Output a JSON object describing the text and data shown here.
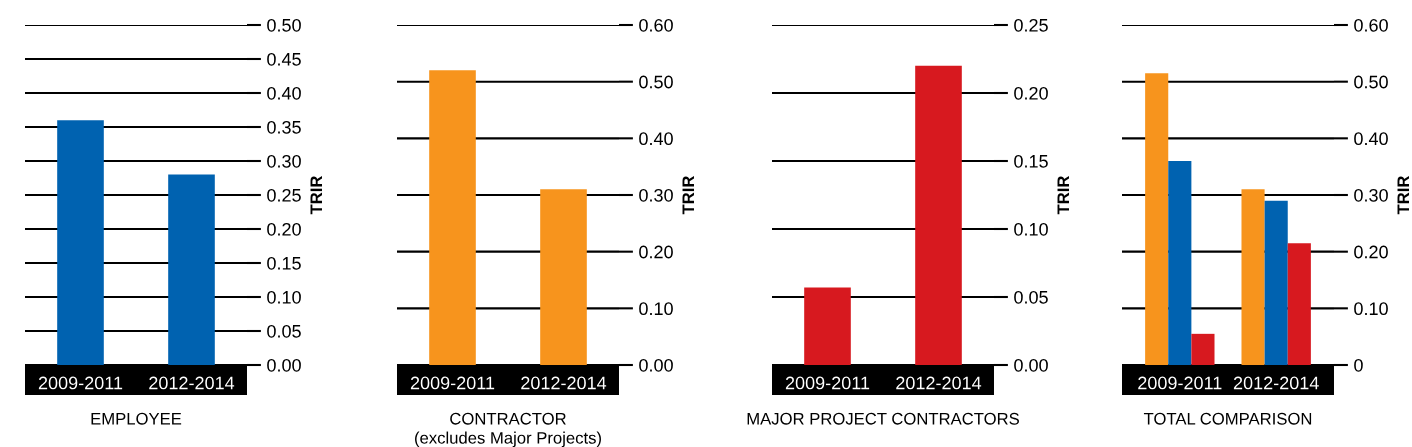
{
  "chart_data": [
    {
      "type": "bar",
      "xlabel": "EMPLOYEE",
      "ylabel": "TRIR",
      "categories": [
        "2009-2011",
        "2012-2014"
      ],
      "values": [
        0.36,
        0.28
      ],
      "color": "#0062b0",
      "ylim": [
        0,
        0.5
      ],
      "yticks": [
        {
          "value": 0,
          "label": "0.00"
        },
        0.05,
        {
          "value": 0.1,
          "label": "0.10"
        },
        0.15,
        {
          "value": 0.2,
          "label": "0.20"
        },
        0.25,
        {
          "value": 0.3,
          "label": "0.30"
        },
        0.35,
        {
          "value": 0.4,
          "label": "0.40"
        },
        0.45,
        {
          "value": 0.5,
          "label": "0.50"
        }
      ],
      "grid": "y"
    },
    {
      "type": "bar",
      "xlabel": "CONTRACTOR\n(excludes Major Projects)",
      "ylabel": "TRIR",
      "categories": [
        "2009-2011",
        "2012-2014"
      ],
      "values": [
        0.52,
        0.31
      ],
      "color": "#f7941d",
      "ylim": [
        0,
        0.6
      ],
      "yticks": [
        {
          "value": 0,
          "label": "0.00"
        },
        {
          "value": 0.1,
          "label": "0.10"
        },
        {
          "value": 0.2,
          "label": "0.20"
        },
        {
          "value": 0.3,
          "label": "0.30"
        },
        {
          "value": 0.4,
          "label": "0.40"
        },
        {
          "value": 0.5,
          "label": "0.50"
        },
        {
          "value": 0.6,
          "label": "0.60"
        }
      ],
      "grid": "y"
    },
    {
      "type": "bar",
      "xlabel": "MAJOR PROJECT CONTRACTORS",
      "ylabel": "TRIR",
      "categories": [
        "2009-2011",
        "2012-2014"
      ],
      "values": [
        0.057,
        0.22
      ],
      "color": "#d7191f",
      "ylim": [
        0,
        0.25
      ],
      "yticks": [
        {
          "value": 0,
          "label": "0.00"
        },
        0.05,
        {
          "value": 0.1,
          "label": "0.10"
        },
        0.15,
        {
          "value": 0.2,
          "label": "0.20"
        },
        0.25
      ],
      "grid": "y"
    },
    {
      "type": "bar",
      "xlabel": "TOTAL COMPARISON",
      "ylabel": "TRIR",
      "categories": [
        "2009-2011",
        "2012-2014"
      ],
      "series": [
        {
          "color": "#f7941d",
          "values": [
            0.515,
            0.31
          ]
        },
        {
          "color": "#0062b0",
          "values": [
            0.36,
            0.29
          ]
        },
        {
          "color": "#d7191f",
          "values": [
            0.055,
            0.215
          ]
        }
      ],
      "ylim": [
        0,
        0.6
      ],
      "yticks": [
        0,
        {
          "value": 0.1,
          "label": "0.10"
        },
        {
          "value": 0.2,
          "label": "0.20"
        },
        {
          "value": 0.3,
          "label": "0.30"
        },
        {
          "value": 0.4,
          "label": "0.40"
        },
        {
          "value": 0.5,
          "label": "0.50"
        },
        {
          "value": 0.6,
          "label": "0.60"
        }
      ],
      "grid": "y"
    }
  ]
}
